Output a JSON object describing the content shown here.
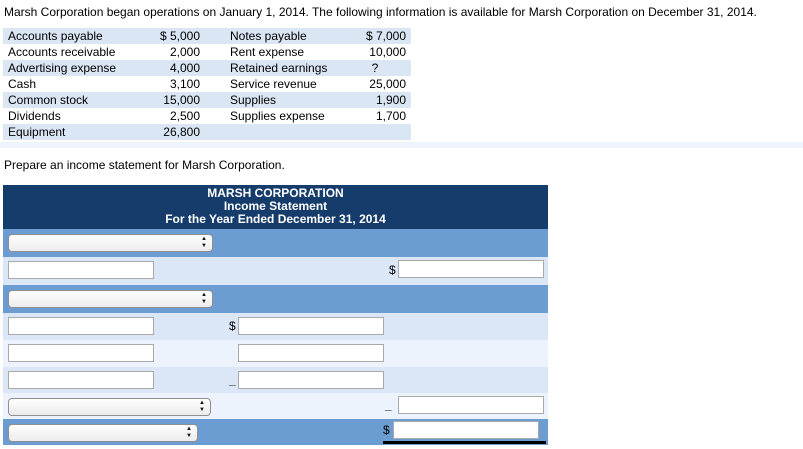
{
  "problem": {
    "intro": "Marsh Corporation began operations on January 1, 2014. The following information is available for Marsh Corporation on December 31, 2014.",
    "instruction": "Prepare an income statement for Marsh Corporation."
  },
  "account_table": {
    "rows": [
      {
        "label1": "Accounts payable",
        "value1": "$ 5,000",
        "label2": "Notes payable",
        "value2": "$ 7,000"
      },
      {
        "label1": "Accounts receivable",
        "value1": "2,000",
        "label2": "Rent expense",
        "value2": "10,000"
      },
      {
        "label1": "Advertising expense",
        "value1": "4,000",
        "label2": "Retained earnings",
        "value2": "?"
      },
      {
        "label1": "Cash",
        "value1": "3,100",
        "label2": "Service revenue",
        "value2": "25,000"
      },
      {
        "label1": "Common stock",
        "value1": "15,000",
        "label2": "Supplies",
        "value2": "1,900"
      },
      {
        "label1": "Dividends",
        "value1": "2,500",
        "label2": "Supplies expense",
        "value2": "1,700"
      },
      {
        "label1": "Equipment",
        "value1": "26,800",
        "label2": "",
        "value2": ""
      }
    ]
  },
  "statement": {
    "title": "MARSH CORPORATION",
    "subtitle": "Income Statement",
    "period": "For the Year Ended December 31, 2014",
    "currency_symbol": "$",
    "minus_symbol": "_"
  },
  "icons": {
    "stepper_up": "▲",
    "stepper_down": "▼"
  },
  "colors": {
    "header_navy": "#153c6b",
    "row_medium_blue": "#6b9dd2",
    "row_light_blue": "#dbe7f7",
    "row_pale_blue": "#edf3fc",
    "table_stripe_blue": "#dbe6f4"
  }
}
